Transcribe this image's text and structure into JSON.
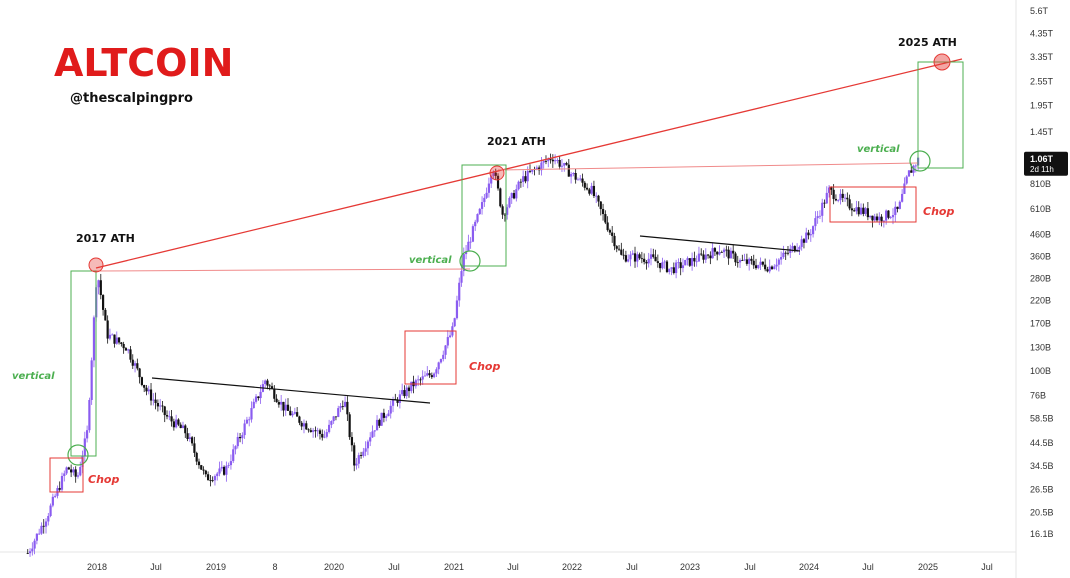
{
  "brand": {
    "title": "ALTCOIN",
    "handle": "@thescalpingpro"
  },
  "colors": {
    "brand_red": "#e01b1b",
    "candle_up": "#8a5cf0",
    "candle_down": "#111111",
    "trend_red": "#e53935",
    "horiz_red": "#f08a8a",
    "vertical_green": "#4caf50",
    "chop_red": "#e53935",
    "price_tag_bg": "#111111"
  },
  "chart_data": {
    "type": "candlestick",
    "title": "",
    "xlabel": "",
    "ylabel": "",
    "y_scale": "log",
    "x_tick_labels": [
      "2018",
      "Jul",
      "2019",
      "8",
      "2020",
      "Jul",
      "2021",
      "Jul",
      "2022",
      "Jul",
      "2023",
      "Jul",
      "2024",
      "Jul",
      "2025",
      "Jul"
    ],
    "y_tick_labels": [
      "5.6T",
      "4.35T",
      "3.35T",
      "2.55T",
      "1.95T",
      "1.45T",
      "1.06T",
      "810B",
      "610B",
      "460B",
      "360B",
      "280B",
      "220B",
      "170B",
      "130B",
      "100B",
      "76B",
      "58.5B",
      "44.5B",
      "34.5B",
      "26.5B",
      "20.5B",
      "16.1B"
    ],
    "y_tick_values": [
      5600000000000.0,
      4350000000000.0,
      3350000000000.0,
      2550000000000.0,
      1950000000000.0,
      1450000000000.0,
      1060000000000.0,
      810000000000.0,
      610000000000.0,
      460000000000.0,
      360000000000.0,
      280000000000.0,
      220000000000.0,
      170000000000.0,
      130000000000.0,
      100000000000.0,
      76000000000.0,
      58500000000.0,
      44500000000.0,
      34500000000.0,
      26500000000.0,
      20500000000.0,
      16100000000.0
    ],
    "current_price": {
      "label": "1.06T",
      "countdown": "2d 11h"
    },
    "series": [
      {
        "points": [
          [
            "2017-06",
            13000000000.0
          ],
          [
            "2017-08",
            20000000000.0
          ],
          [
            "2017-10",
            34000000000.0
          ],
          [
            "2017-11",
            30000000000.0
          ],
          [
            "2017-12",
            50000000000.0
          ],
          [
            "2018-01",
            310000000000.0
          ],
          [
            "2018-02",
            150000000000.0
          ],
          [
            "2018-04",
            130000000000.0
          ],
          [
            "2018-06",
            80000000000.0
          ],
          [
            "2018-08",
            60000000000.0
          ],
          [
            "2018-10",
            50000000000.0
          ],
          [
            "2018-12",
            30000000000.0
          ],
          [
            "2019-02",
            33000000000.0
          ],
          [
            "2019-04",
            55000000000.0
          ],
          [
            "2019-06",
            90000000000.0
          ],
          [
            "2019-08",
            65000000000.0
          ],
          [
            "2019-10",
            55000000000.0
          ],
          [
            "2019-12",
            48000000000.0
          ],
          [
            "2020-02",
            73000000000.0
          ],
          [
            "2020-03",
            35000000000.0
          ],
          [
            "2020-05",
            53000000000.0
          ],
          [
            "2020-07",
            70000000000.0
          ],
          [
            "2020-09",
            86000000000.0
          ],
          [
            "2020-11",
            98000000000.0
          ],
          [
            "2021-01",
            160000000000.0
          ],
          [
            "2021-02",
            350000000000.0
          ],
          [
            "2021-04",
            650000000000.0
          ],
          [
            "2021-05",
            1000000000000.0
          ],
          [
            "2021-06",
            580000000000.0
          ],
          [
            "2021-08",
            850000000000.0
          ],
          [
            "2021-11",
            1100000000000.0
          ],
          [
            "2022-01",
            900000000000.0
          ],
          [
            "2022-03",
            750000000000.0
          ],
          [
            "2022-05",
            460000000000.0
          ],
          [
            "2022-06",
            360000000000.0
          ],
          [
            "2022-09",
            350000000000.0
          ],
          [
            "2022-11",
            310000000000.0
          ],
          [
            "2023-01",
            340000000000.0
          ],
          [
            "2023-04",
            390000000000.0
          ],
          [
            "2023-06",
            340000000000.0
          ],
          [
            "2023-09",
            320000000000.0
          ],
          [
            "2023-11",
            380000000000.0
          ],
          [
            "2024-01",
            460000000000.0
          ],
          [
            "2024-03",
            750000000000.0
          ],
          [
            "2024-05",
            640000000000.0
          ],
          [
            "2024-08",
            550000000000.0
          ],
          [
            "2024-10",
            600000000000.0
          ],
          [
            "2024-11",
            900000000000.0
          ],
          [
            "2024-12",
            1060000000000.0
          ]
        ]
      }
    ],
    "annotations": [
      {
        "type": "label",
        "text": "2017 ATH"
      },
      {
        "type": "label",
        "text": "2021 ATH"
      },
      {
        "type": "label",
        "text": "2025 ATH"
      },
      {
        "type": "label",
        "text": "vertical"
      },
      {
        "type": "label",
        "text": "vertical"
      },
      {
        "type": "label",
        "text": "vertical"
      },
      {
        "type": "label",
        "text": "Chop"
      },
      {
        "type": "label",
        "text": "Chop"
      },
      {
        "type": "label",
        "text": "Chop"
      }
    ]
  }
}
